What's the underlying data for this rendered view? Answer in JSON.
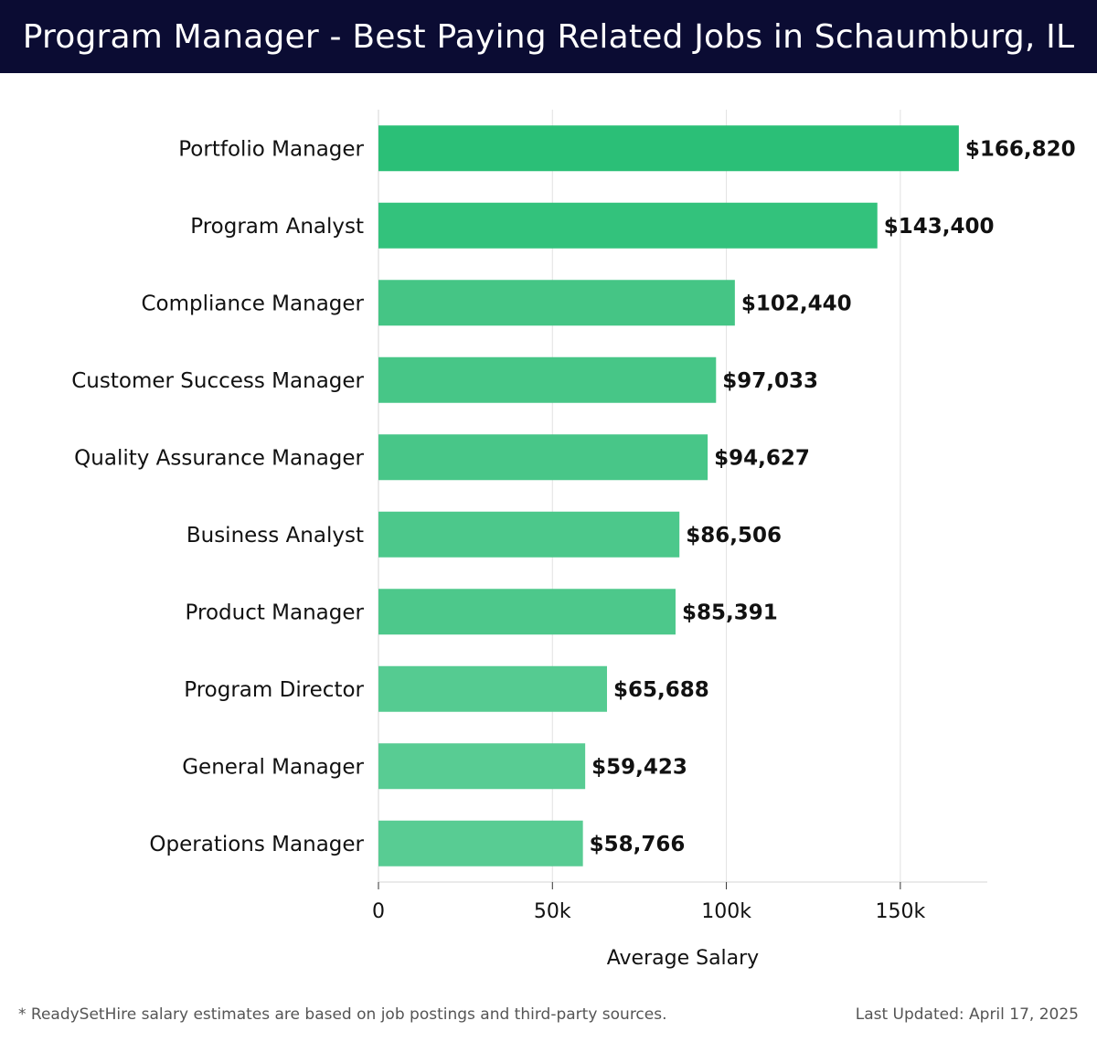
{
  "header": {
    "title": "Program Manager - Best Paying Related Jobs in Schaumburg, IL"
  },
  "chart_data": {
    "type": "bar",
    "orientation": "horizontal",
    "title": "Program Manager - Best Paying Related Jobs in Schaumburg, IL",
    "xlabel": "Average Salary",
    "ylabel": "",
    "xlim": [
      0,
      175000
    ],
    "grid": true,
    "categories": [
      "Portfolio Manager",
      "Program Analyst",
      "Compliance Manager",
      "Customer Success Manager",
      "Quality Assurance Manager",
      "Business Analyst",
      "Product Manager",
      "Program Director",
      "General Manager",
      "Operations Manager"
    ],
    "values": [
      166820,
      143400,
      102440,
      97033,
      94627,
      86506,
      85391,
      65688,
      59423,
      58766
    ],
    "value_labels": [
      "$166,820",
      "$143,400",
      "$102,440",
      "$97,033",
      "$94,627",
      "$86,506",
      "$85,391",
      "$65,688",
      "$59,423",
      "$58,766"
    ],
    "ticks": [
      {
        "value": 0,
        "label": "0"
      },
      {
        "value": 50000,
        "label": "50k"
      },
      {
        "value": 100000,
        "label": "100k"
      },
      {
        "value": 150000,
        "label": "150k"
      }
    ],
    "bar_colors": [
      "#2bbf77",
      "#33c27c",
      "#45c585",
      "#47c687",
      "#48c688",
      "#4cc88b",
      "#4dc88b",
      "#55cb91",
      "#58cc93",
      "#58cc93"
    ]
  },
  "footer": {
    "note": "* ReadySetHire salary estimates are based on job postings and third-party sources.",
    "updated": "Last Updated: April 17, 2025"
  }
}
